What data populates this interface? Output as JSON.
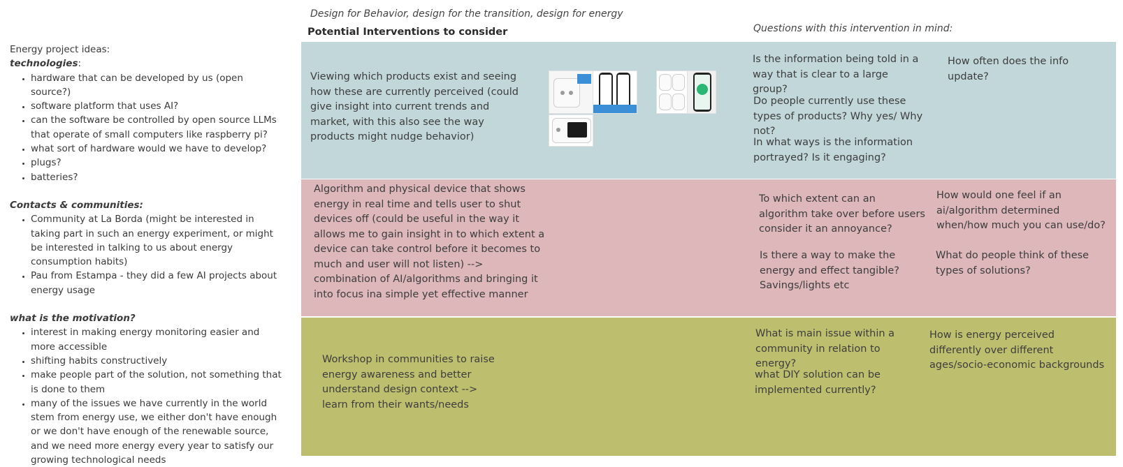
{
  "header": {
    "tagline": "Design for Behavior, design for the transition, design for energy",
    "interventions_title": "Potential Interventions to consider",
    "questions_title": "Questions with this intervention in mind:"
  },
  "notes": {
    "intro": "Energy project ideas:",
    "technologies_title": "technologies",
    "technologies_colon": ":",
    "technologies": [
      "hardware that can be developed by us (open source?)",
      " software platform that uses AI?",
      "can the software be controlled by open source LLMs that operate of small computers like raspberry pi?",
      "what sort of hardware would we have to develop?",
      "plugs?",
      "batteries?"
    ],
    "contacts_title": "Contacts & communities:",
    "contacts": [
      "Community at La Borda (might be interested in taking part in such an energy experiment, or might be interested in talking to us about energy consumption habits)",
      "Pau from Estampa  - they did a few AI projects about energy usage"
    ],
    "motivation_title": "what is the motivation?",
    "motivation": [
      "interest in making energy monitoring easier and more accessible",
      "shifting habits constructively",
      "make people part of the solution, not something that is done to them",
      "many of the issues we have currently in the world stem from energy use, we either don't have enough or we don't have enough of the renewable source, and we need more energy every year to satisfy our growing technological needs"
    ]
  },
  "rows": [
    {
      "color": "#c2d7da",
      "intervention": "Viewing which products exist and seeing how these are currently perceived (could give insight into current trends and market, with this also see the way products might nudge behavior)",
      "questions_a": "Is the information being told in a way that is clear to a large group?",
      "questions_b": "Do people currently use these types of products? Why yes/ Why not?",
      "questions_c": "In what ways is the information portrayed? Is it engaging?",
      "questions_d": "How often does the info update?",
      "images": [
        "smart-plug-product-image",
        "energy-app-screenshot-image",
        "smart-plug-set-image",
        "plug-energy-meter-image"
      ]
    },
    {
      "color": "#ddb7b9",
      "intervention": "Algorithm and physical device that shows energy in real time and tells user to shut devices off (could be useful in the way it allows me to gain insight in to which extent a device can take control before it becomes to much and user will not listen) --> combination of AI/algorithms and bringing it into focus ina simple yet effective manner",
      "questions_a": "To which extent can an algorithm take over before users consider it an annoyance?",
      "questions_b": "Is there a way to make the energy and effect tangible? Savings/lights etc",
      "questions_c": "How would one feel if an ai/algorithm determined when/how much you can use/do?",
      "questions_d": "What do people think of these types of solutions?"
    },
    {
      "color": "#bdbf6f",
      "intervention": "Workshop in communities to raise energy awareness and better understand design context --> learn from their wants/needs",
      "questions_a": "What is main issue within a community in relation to energy?",
      "questions_b": "what DIY solution can be implemented currently?",
      "questions_c": "How is energy perceived differently over different ages/socio-economic backgrounds"
    }
  ]
}
